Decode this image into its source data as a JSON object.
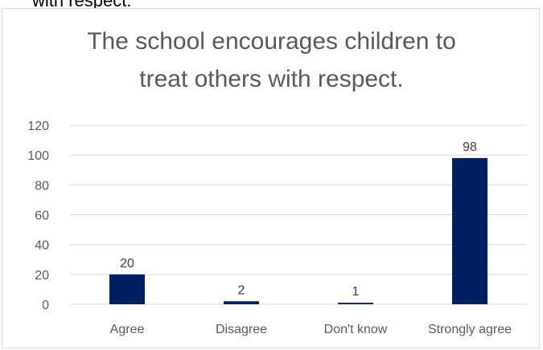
{
  "page_fragment": "with respect.",
  "chart_data": {
    "type": "bar",
    "title_lines": [
      "The school encourages children to",
      "treat others with respect."
    ],
    "categories": [
      "Agree",
      "Disagree",
      "Don't know",
      "Strongly agree"
    ],
    "values": [
      20,
      2,
      1,
      98
    ],
    "data_labels": [
      "20",
      "2",
      "1",
      "98"
    ],
    "ylim": [
      0,
      120
    ],
    "y_ticks": [
      "0",
      "20",
      "40",
      "60",
      "80",
      "100",
      "120"
    ],
    "grid": true,
    "legend": "none",
    "colors": {
      "bar": "#002060",
      "grid": "#d9d9d9",
      "text": "#595959",
      "label": "#404040"
    }
  }
}
